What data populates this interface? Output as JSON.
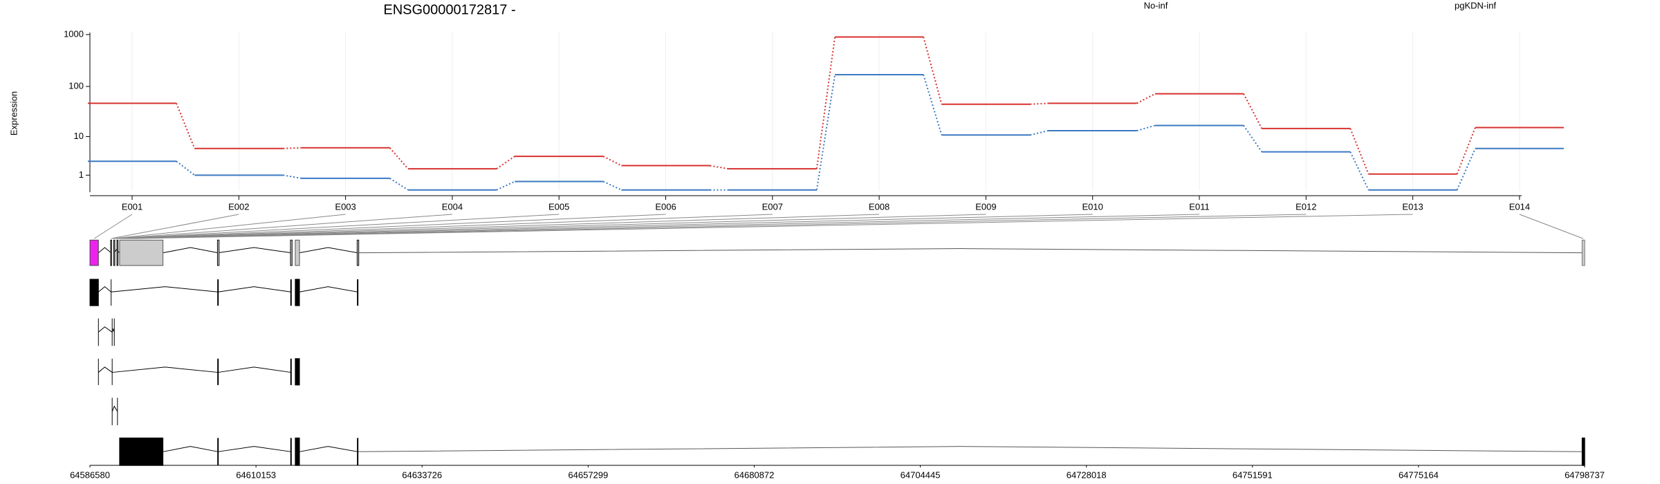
{
  "chart_data": {
    "type": "line",
    "title": "ENSG00000172817 -",
    "ylabel": "Expression",
    "yscale": "log10(x+1)",
    "categories": [
      "E001",
      "E002",
      "E003",
      "E004",
      "E005",
      "E006",
      "E007",
      "E008",
      "E009",
      "E010",
      "E011",
      "E012",
      "E013",
      "E014"
    ],
    "series": [
      {
        "name": "No-inf",
        "color": "#d7302f",
        "values": [
          47,
          5.5,
          5.7,
          1.65,
          3.6,
          2.05,
          1.65,
          900,
          45,
          47,
          72,
          14.7,
          1.1,
          15.4
        ]
      },
      {
        "name": "pgKDN-inf",
        "color": "#3a78c2",
        "values": [
          2.7,
          1.0,
          0.74,
          0.04,
          0.51,
          0.04,
          0.04,
          169,
          10.8,
          13.3,
          17,
          4.6,
          0.04,
          5.5
        ]
      }
    ],
    "ylim": [
      0,
      1000
    ],
    "yticks": [
      1,
      10,
      100,
      1000
    ],
    "grid": true,
    "genome_axis": {
      "xlim": [
        64586580,
        64798737
      ],
      "xticks": [
        64586580,
        64610153,
        64633726,
        64657299,
        64680872,
        64704445,
        64728018,
        64751591,
        64775164,
        64798737
      ]
    }
  }
}
